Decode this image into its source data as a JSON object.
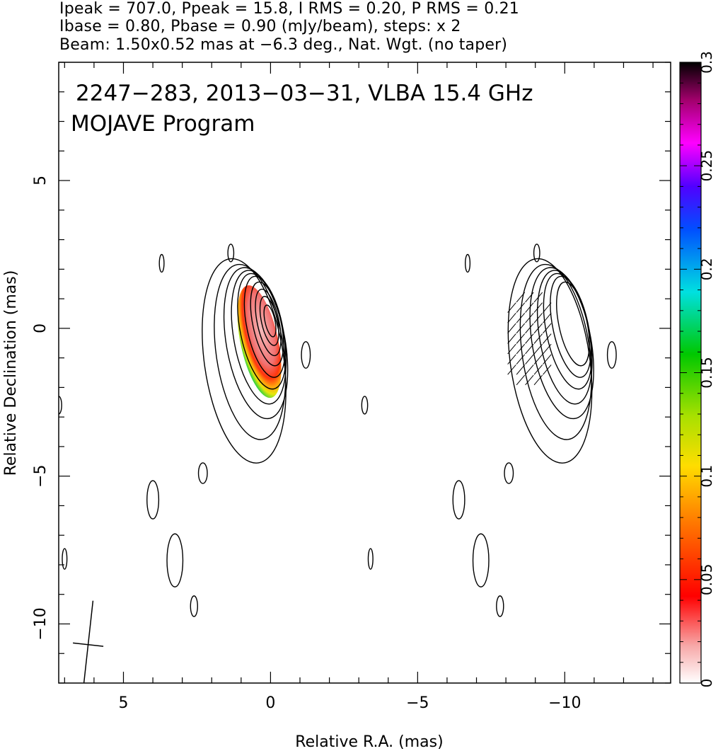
{
  "header": {
    "line1": "Ipeak = 707.0, Ppeak = 15.8, I RMS = 0.20, P RMS = 0.21",
    "line2": "Ibase = 0.80, Pbase = 0.90 (mJy/beam), steps: x 2",
    "line3": "Beam: 1.50x0.52 mas at −6.3 deg., Nat. Wgt. (no taper)"
  },
  "chart_data": {
    "type": "contour",
    "title_line1": "2247−283, 2013−03−31, VLBA 15.4 GHz",
    "title_line2": "MOJAVE Program",
    "xlabel": "Relative R.A. (mas)",
    "ylabel": "Relative Declination (mas)",
    "xlim": [
      7.2,
      -13.6
    ],
    "ylim": [
      -12,
      9
    ],
    "x_ticks": [
      5,
      0,
      -5,
      -10
    ],
    "x_tick_labels": [
      "5",
      "0",
      "−5",
      "−10"
    ],
    "y_ticks": [
      5,
      0,
      -5,
      -10
    ],
    "y_tick_labels": [
      "5",
      "0",
      "−5",
      "−10"
    ],
    "colorbar": {
      "range": [
        0,
        0.3
      ],
      "ticks": [
        0,
        0.05,
        0.1,
        0.15,
        0.2,
        0.25,
        0.3
      ],
      "tick_labels": [
        "0",
        "0.05",
        "0.1",
        "0.15",
        "0.2",
        "0.25",
        "0.3"
      ]
    },
    "left_panel": {
      "center": [
        0,
        0
      ],
      "contours": [
        {
          "x": 0.9,
          "y": -1.1,
          "rx": 1.35,
          "ry": 3.5,
          "angle": -8
        },
        {
          "x": 0.7,
          "y": -0.8,
          "rx": 1.15,
          "ry": 3.0,
          "angle": -8
        },
        {
          "x": 0.5,
          "y": -0.5,
          "rx": 1.0,
          "ry": 2.6,
          "angle": -10
        },
        {
          "x": 0.4,
          "y": -0.3,
          "rx": 0.85,
          "ry": 2.3,
          "angle": -10
        },
        {
          "x": 0.3,
          "y": -0.1,
          "rx": 0.72,
          "ry": 2.0,
          "angle": -12
        },
        {
          "x": 0.2,
          "y": 0.05,
          "rx": 0.6,
          "ry": 1.75,
          "angle": -12
        },
        {
          "x": 0.12,
          "y": 0.15,
          "rx": 0.48,
          "ry": 1.45,
          "angle": -12
        },
        {
          "x": 0.08,
          "y": 0.2,
          "rx": 0.37,
          "ry": 1.15,
          "angle": -12
        },
        {
          "x": 0.04,
          "y": 0.25,
          "rx": 0.27,
          "ry": 0.85,
          "angle": -12
        },
        {
          "x": 0.02,
          "y": 0.25,
          "rx": 0.17,
          "ry": 0.55,
          "angle": -12
        }
      ],
      "noise_contours": [
        {
          "x": 3.7,
          "y": 2.2,
          "rx": 0.08,
          "ry": 0.3
        },
        {
          "x": 1.35,
          "y": 2.55,
          "rx": 0.1,
          "ry": 0.3
        },
        {
          "x": -1.2,
          "y": -0.9,
          "rx": 0.15,
          "ry": 0.45
        },
        {
          "x": 7.2,
          "y": -2.6,
          "rx": 0.1,
          "ry": 0.3
        },
        {
          "x": 2.3,
          "y": -4.9,
          "rx": 0.15,
          "ry": 0.35
        },
        {
          "x": 4.0,
          "y": -5.8,
          "rx": 0.2,
          "ry": 0.65
        },
        {
          "x": 3.25,
          "y": -7.85,
          "rx": 0.27,
          "ry": 0.9
        },
        {
          "x": 2.6,
          "y": -9.4,
          "rx": 0.12,
          "ry": 0.35
        },
        {
          "x": 7.0,
          "y": -7.8,
          "rx": 0.08,
          "ry": 0.35
        }
      ]
    },
    "right_panel": {
      "offset_x": -10.4,
      "evpa_region": {
        "x": -8.8,
        "y": -0.4,
        "rx": 0.9,
        "ry": 1.7
      }
    },
    "beam": {
      "major": 1.5,
      "minor": 0.52,
      "pa_deg": -6.3,
      "x": 6.2,
      "y": -10.7
    }
  }
}
